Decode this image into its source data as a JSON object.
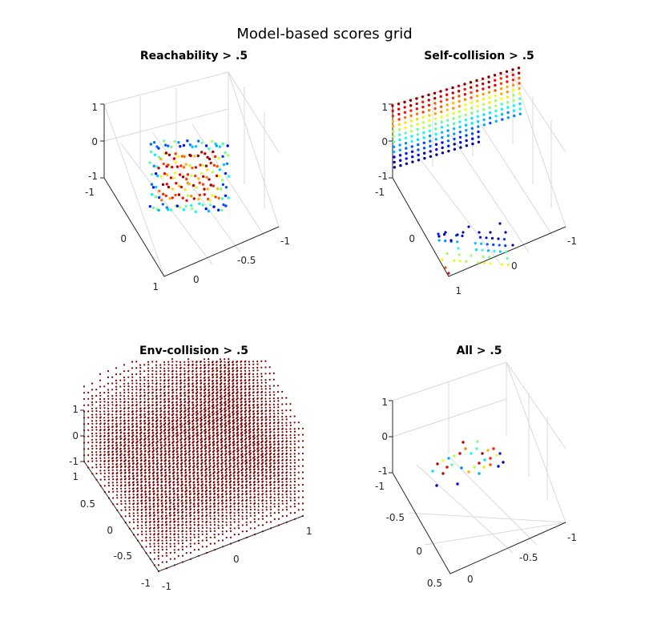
{
  "figure": {
    "title": "Model-based scores grid"
  },
  "colors": {
    "colormap": "jet",
    "env_points": "#7a0000",
    "grid_lines": "#d9d9d9",
    "axis_lines": "#262626"
  },
  "chart_data": [
    {
      "id": "reach",
      "type": "scatter3d",
      "title": "Reachability > .5",
      "xlim": [
        -1,
        1
      ],
      "ylim": [
        -1,
        1
      ],
      "zlim": [
        -1,
        1
      ],
      "zticks": [
        "1",
        "0",
        "-1"
      ],
      "xticks": [
        "-1",
        "-0.5",
        "0"
      ],
      "yticks": [
        "-1",
        "0",
        "1"
      ],
      "description_of_points": "dense cluster of colored points near the center of the volume",
      "point_count": 160,
      "x_range": [
        -0.35,
        0.35
      ],
      "y_range": [
        -0.4,
        0.4
      ],
      "z_range": [
        -1,
        0
      ]
    },
    {
      "id": "self",
      "type": "scatter3d",
      "title": "Self-collision > .5",
      "xlim": [
        -1,
        1
      ],
      "ylim": [
        -1,
        1
      ],
      "zlim": [
        -1,
        1
      ],
      "zticks": [
        "1",
        "0",
        "-1"
      ],
      "xticks": [
        "-1",
        "0"
      ],
      "yticks": [
        "-1",
        "0",
        "1"
      ],
      "point_count": 320
    },
    {
      "id": "env",
      "type": "scatter3d",
      "title": "Env-collision > .5",
      "xlim": [
        -1,
        1
      ],
      "ylim": [
        -1,
        1
      ],
      "zlim": [
        -1,
        1
      ],
      "zticks": [
        "1",
        "0",
        "-1"
      ],
      "yticks": [
        "1",
        "0.5",
        "0",
        "-0.5",
        "-1"
      ],
      "xticks": [
        "-1",
        "0",
        "1"
      ],
      "grid_n": 19
    },
    {
      "id": "all",
      "type": "scatter3d",
      "title": "All > .5",
      "xlim": [
        -1,
        1
      ],
      "ylim": [
        -1,
        0.5
      ],
      "zlim": [
        -1,
        1
      ],
      "zticks": [
        "1",
        "0",
        "-1"
      ],
      "yticks": [
        "-1",
        "-0.5",
        "0",
        "0.5"
      ],
      "xticks": [
        "0",
        "-0.5",
        "-1"
      ],
      "point_count": 32
    }
  ]
}
